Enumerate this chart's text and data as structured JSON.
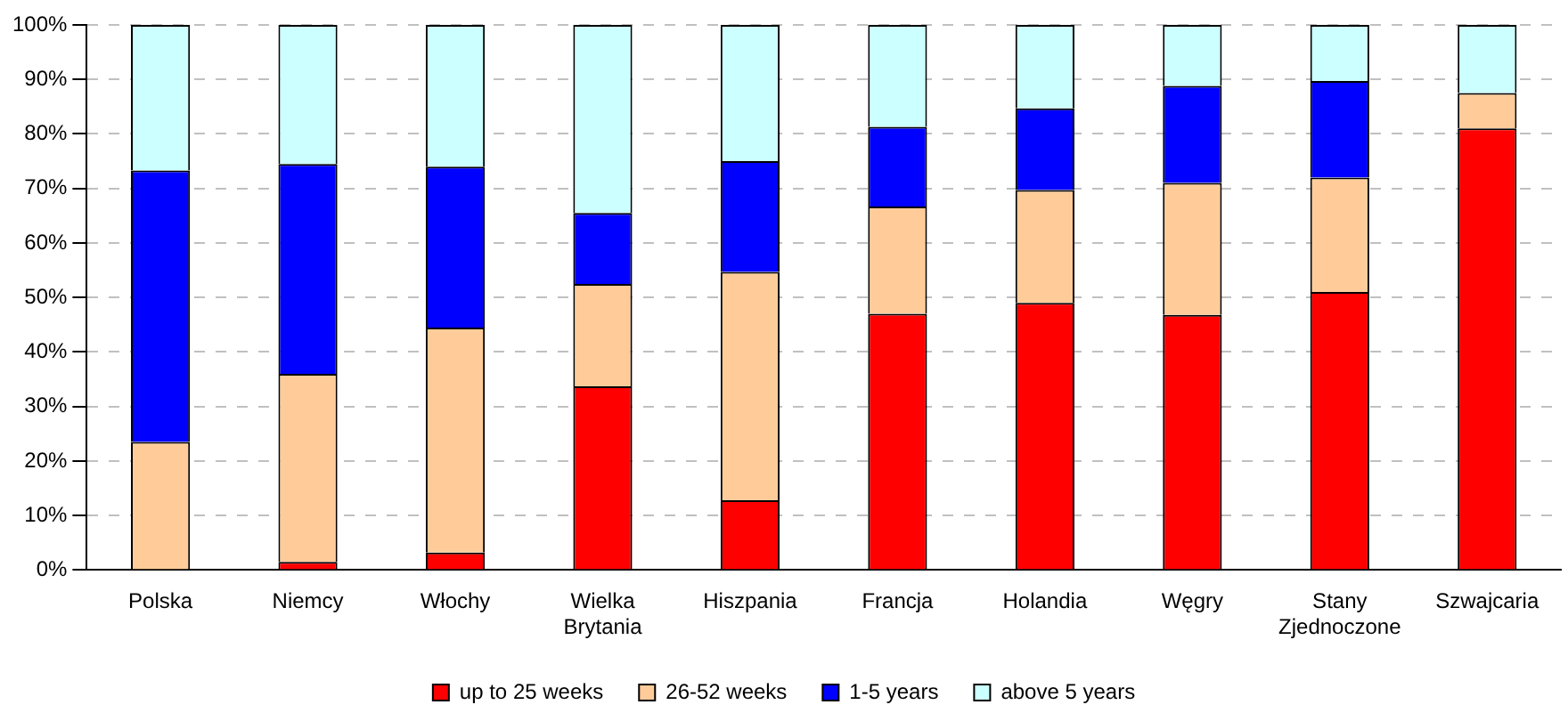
{
  "chart_data": {
    "type": "bar",
    "stacked": true,
    "categories": [
      "Polska",
      "Niemcy",
      "Włochy",
      "Wielka Brytania",
      "Hiszpania",
      "Francja",
      "Holandia",
      "Węgry",
      "Stany Zjednoczone",
      "Szwajcaria"
    ],
    "series": [
      {
        "name": "up to 25 weeks",
        "color": "#ff0000",
        "values": [
          0,
          1.5,
          3.2,
          33.7,
          12.8,
          47,
          49,
          46.8,
          51,
          81
        ]
      },
      {
        "name": "26-52 weeks",
        "color": "#ffcc99",
        "values": [
          23.5,
          34.5,
          41.3,
          18.8,
          41.9,
          19.7,
          20.7,
          24.2,
          21,
          6.5
        ]
      },
      {
        "name": "1-5 years",
        "color": "#0000ff",
        "values": [
          49.8,
          38.5,
          29.5,
          13,
          20.3,
          14.6,
          15,
          17.8,
          17.7,
          0
        ]
      },
      {
        "name": "above 5 years",
        "color": "#ccffff",
        "values": [
          26.7,
          25.5,
          26,
          34.5,
          25,
          18.7,
          15.3,
          11.2,
          10.3,
          12.5
        ]
      }
    ],
    "ylim": [
      0,
      100
    ],
    "yticks": [
      {
        "value": 0,
        "label": "0%"
      },
      {
        "value": 10,
        "label": "10%"
      },
      {
        "value": 20,
        "label": "20%"
      },
      {
        "value": 30,
        "label": "30%"
      },
      {
        "value": 40,
        "label": "40%"
      },
      {
        "value": 50,
        "label": "50%"
      },
      {
        "value": 60,
        "label": "60%"
      },
      {
        "value": 70,
        "label": "70%"
      },
      {
        "value": 80,
        "label": "80%"
      },
      {
        "value": 90,
        "label": "90%"
      },
      {
        "value": 100,
        "label": "100%"
      }
    ],
    "grid": "y",
    "legend": "bottom"
  }
}
